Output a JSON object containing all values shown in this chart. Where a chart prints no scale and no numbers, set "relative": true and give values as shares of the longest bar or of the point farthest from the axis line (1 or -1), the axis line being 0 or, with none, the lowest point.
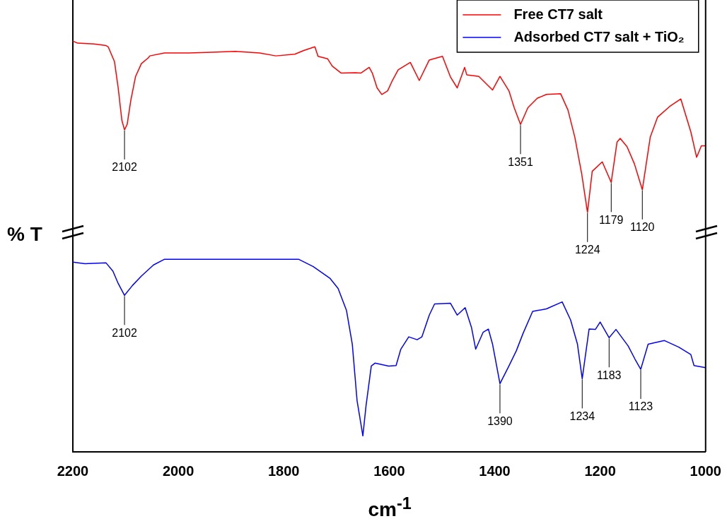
{
  "chart_data": {
    "type": "line",
    "relative": true,
    "xlabel": "cm$^{-1}$",
    "ylabel": "% T",
    "xlim": [
      2200,
      1000
    ],
    "xticks": [
      2200,
      2000,
      1800,
      1600,
      1400,
      1200,
      1000
    ],
    "legend": "top right",
    "marker": "none",
    "series": [
      {
        "name": "Free CT7 salt",
        "color": "#ff0000",
        "x": [
          2200,
          2191,
          2160,
          2137,
          2133,
          2121,
          2114,
          2107,
          2102,
          2097,
          2090,
          2081,
          2070,
          2057,
          2054,
          2026,
          1980,
          1936,
          1892,
          1846,
          1815,
          1779,
          1762,
          1741,
          1735,
          1717,
          1708,
          1691,
          1664,
          1654,
          1638,
          1632,
          1623,
          1614,
          1603,
          1594,
          1583,
          1560,
          1543,
          1524,
          1499,
          1484,
          1471,
          1457,
          1453,
          1430,
          1404,
          1390,
          1373,
          1363,
          1351,
          1337,
          1319,
          1302,
          1275,
          1261,
          1248,
          1235,
          1224,
          1215,
          1196,
          1179,
          1168,
          1162,
          1149,
          1135,
          1120,
          1105,
          1091,
          1068,
          1047,
          1028,
          1017,
          1008,
          1000
        ],
        "values": [
          1.0,
          0.995,
          0.993,
          0.989,
          0.986,
          0.95,
          0.886,
          0.807,
          0.784,
          0.797,
          0.856,
          0.914,
          0.945,
          0.959,
          0.964,
          0.971,
          0.971,
          0.973,
          0.975,
          0.971,
          0.964,
          0.968,
          0.977,
          0.986,
          0.963,
          0.957,
          0.939,
          0.922,
          0.923,
          0.922,
          0.936,
          0.922,
          0.886,
          0.87,
          0.879,
          0.904,
          0.93,
          0.948,
          0.904,
          0.954,
          0.963,
          0.913,
          0.886,
          0.936,
          0.918,
          0.914,
          0.881,
          0.914,
          0.879,
          0.838,
          0.797,
          0.838,
          0.861,
          0.87,
          0.872,
          0.832,
          0.766,
          0.677,
          0.583,
          0.683,
          0.706,
          0.656,
          0.754,
          0.763,
          0.743,
          0.701,
          0.638,
          0.766,
          0.815,
          0.841,
          0.859,
          0.779,
          0.717,
          0.745,
          0.745
        ]
      },
      {
        "name": "Adsorbed CT7 salt + TiO₂",
        "color": "#0000ff",
        "x": [
          2200,
          2177,
          2137,
          2124,
          2114,
          2102,
          2087,
          2070,
          2047,
          2026,
          1936,
          1846,
          1772,
          1744,
          1712,
          1697,
          1681,
          1670,
          1661,
          1650,
          1644,
          1634,
          1627,
          1601,
          1587,
          1578,
          1563,
          1547,
          1538,
          1524,
          1514,
          1484,
          1471,
          1456,
          1444,
          1436,
          1422,
          1412,
          1404,
          1390,
          1373,
          1359,
          1346,
          1328,
          1302,
          1272,
          1256,
          1243,
          1234,
          1221,
          1209,
          1200,
          1183,
          1170,
          1147,
          1134,
          1123,
          1109,
          1078,
          1051,
          1028,
          1022,
          1000
        ],
        "values": [
          0.462,
          0.458,
          0.46,
          0.44,
          0.41,
          0.381,
          0.405,
          0.428,
          0.455,
          0.469,
          0.469,
          0.469,
          0.469,
          0.451,
          0.422,
          0.398,
          0.344,
          0.262,
          0.125,
          0.039,
          0.112,
          0.209,
          0.216,
          0.209,
          0.21,
          0.25,
          0.28,
          0.273,
          0.28,
          0.333,
          0.36,
          0.362,
          0.333,
          0.351,
          0.303,
          0.25,
          0.291,
          0.299,
          0.262,
          0.166,
          0.209,
          0.246,
          0.289,
          0.342,
          0.348,
          0.365,
          0.321,
          0.262,
          0.178,
          0.299,
          0.298,
          0.316,
          0.278,
          0.298,
          0.258,
          0.226,
          0.201,
          0.262,
          0.271,
          0.255,
          0.237,
          0.21,
          0.205
        ]
      }
    ],
    "annotations": [
      {
        "text": "2102",
        "x": 2102,
        "y": 0.784
      },
      {
        "text": "1351",
        "x": 1351,
        "y": 0.797
      },
      {
        "text": "1224",
        "x": 1224,
        "y": 0.583
      },
      {
        "text": "1179",
        "x": 1179,
        "y": 0.656
      },
      {
        "text": "1120",
        "x": 1120,
        "y": 0.638
      },
      {
        "text": "2102",
        "x": 2102,
        "y": 0.381
      },
      {
        "text": "1390",
        "x": 1390,
        "y": 0.166
      },
      {
        "text": "1234",
        "x": 1234,
        "y": 0.178
      },
      {
        "text": "1183",
        "x": 1183,
        "y": 0.278
      },
      {
        "text": "1123",
        "x": 1123,
        "y": 0.201
      }
    ]
  }
}
